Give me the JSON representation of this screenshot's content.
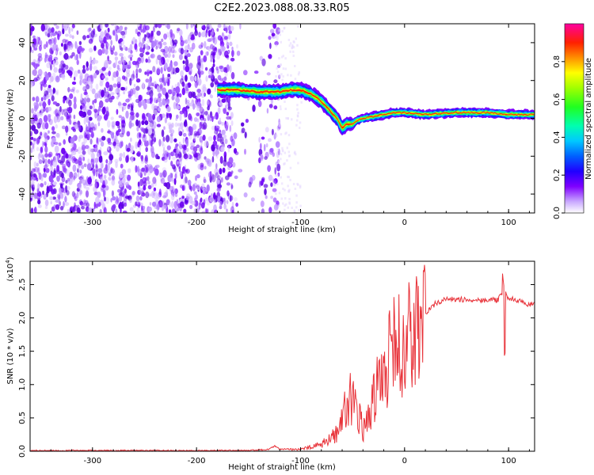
{
  "title": "C2E2.2023.088.08.33.R05",
  "chart_data": [
    {
      "type": "heatmap",
      "title": "C2E2.2023.088.08.33.R05",
      "xlabel": "Height of straight line (km)",
      "ylabel": "Frequency (Hz)",
      "xlim": [
        -360,
        125
      ],
      "ylim": [
        -50,
        50
      ],
      "x_ticks": [
        -300,
        -200,
        -100,
        0,
        100
      ],
      "x_tick_labels": [
        "-300",
        "-200",
        "-100",
        "0",
        "100"
      ],
      "y_ticks": [
        -40,
        -20,
        0,
        20,
        40
      ],
      "y_tick_labels": [
        "-40",
        "-20",
        "0",
        "20",
        "40"
      ],
      "colorbar": {
        "label": "Normalized spectral amplitude",
        "range": [
          0,
          1
        ],
        "ticks": [
          0.0,
          0.2,
          0.4,
          0.6,
          0.8
        ],
        "tick_labels": [
          "0.0",
          "0.2",
          "0.4",
          "0.6",
          "0.8"
        ],
        "colors": [
          "#ffffff",
          "#d8b8ff",
          "#7f00ff",
          "#0000ff",
          "#00bfff",
          "#00ff80",
          "#80ff00",
          "#ffff00",
          "#ff8000",
          "#ff0000",
          "#ff00a0"
        ]
      },
      "ridge": {
        "description_x": [
          -180,
          -160,
          -140,
          -120,
          -110,
          -100,
          -90,
          -80,
          -70,
          -65,
          -60,
          -55,
          -50,
          -45,
          -40,
          -30,
          -20,
          -10,
          0,
          20,
          50,
          80,
          100,
          125
        ],
        "description_y": [
          15,
          15,
          14,
          14,
          15,
          15,
          13,
          9,
          3,
          0,
          -5,
          -3,
          -3,
          -1,
          0,
          1,
          2,
          3,
          3,
          2,
          3,
          3,
          2,
          2
        ],
        "width_hz": [
          8,
          8,
          8,
          8,
          8,
          8,
          8,
          8,
          8,
          8,
          9,
          8,
          6,
          5,
          5,
          5,
          5,
          5,
          5,
          5,
          5,
          5,
          5,
          5
        ]
      },
      "noise_region": [
        -360,
        -120
      ]
    },
    {
      "type": "line",
      "xlabel": "Height of straight line (km)",
      "ylabel": "SNR (10 * v/v)",
      "multiplier_label": "(x10",
      "multiplier_exp": "4",
      "multiplier_close": ")",
      "xlim": [
        -360,
        125
      ],
      "ylim": [
        0,
        2.85
      ],
      "x_ticks": [
        -300,
        -200,
        -100,
        0,
        100
      ],
      "x_tick_labels": [
        "-300",
        "-200",
        "-100",
        "0",
        "100"
      ],
      "y_ticks": [
        0.0,
        0.5,
        1.0,
        1.5,
        2.0,
        2.5
      ],
      "y_tick_labels": [
        "0.0",
        "0.5",
        "1.0",
        "1.5",
        "2.0",
        "2.5"
      ],
      "color": "#e8333a",
      "series": [
        {
          "x": [
            -360,
            -300,
            -200,
            -150,
            -130,
            -125,
            -120,
            -110,
            -100,
            -90,
            -80,
            -70,
            -65,
            -60,
            -55,
            -50,
            -45,
            -40,
            -35,
            -30,
            -25,
            -20,
            -15,
            -10,
            -5,
            0,
            5,
            10,
            15,
            20,
            25,
            30,
            40,
            50,
            60,
            70,
            80,
            90,
            95,
            100,
            110,
            120,
            125
          ],
          "y": [
            0.01,
            0.01,
            0.01,
            0.01,
            0.03,
            0.08,
            0.03,
            0.03,
            0.03,
            0.06,
            0.1,
            0.2,
            0.3,
            0.5,
            0.7,
            0.9,
            0.6,
            0.3,
            0.5,
            0.8,
            1.0,
            1.3,
            1.4,
            1.5,
            1.6,
            1.6,
            1.7,
            1.8,
            1.9,
            2.05,
            2.15,
            2.22,
            2.28,
            2.28,
            2.27,
            2.27,
            2.27,
            2.27,
            2.4,
            2.3,
            2.25,
            2.2,
            2.2
          ]
        }
      ]
    }
  ]
}
